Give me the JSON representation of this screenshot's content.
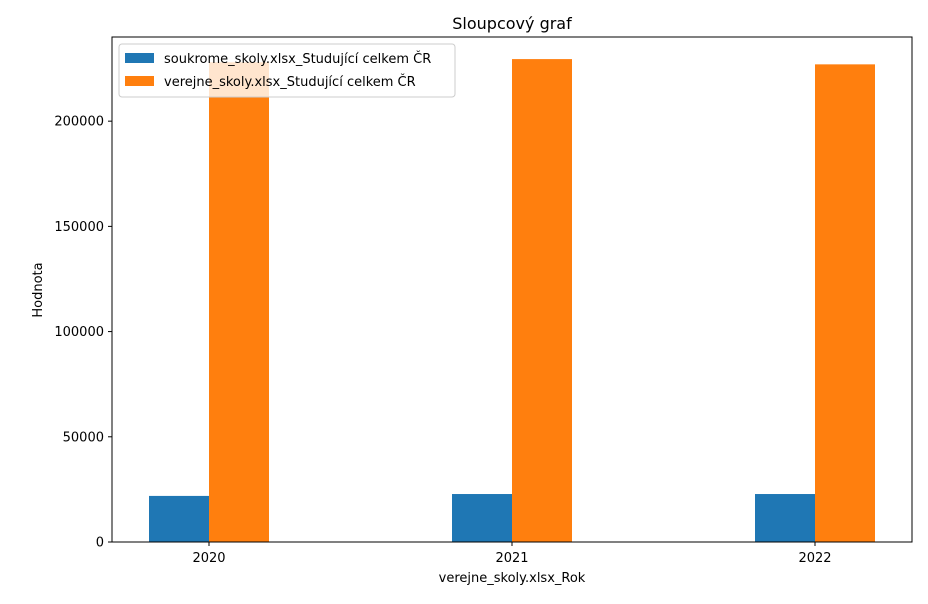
{
  "chart_data": {
    "type": "bar",
    "title": "Sloupcový graf",
    "xlabel": "verejne_skoly.xlsx_Rok",
    "ylabel": "Hodnota",
    "categories": [
      "2020",
      "2021",
      "2022"
    ],
    "series": [
      {
        "name": "soukrome_skoly.xlsx_Studující celkem ČR",
        "values": [
          21900,
          22800,
          22800
        ],
        "color": "#1f77b4"
      },
      {
        "name": "verejne_skoly.xlsx_Studující celkem ČR",
        "values": [
          228000,
          229500,
          227000
        ],
        "color": "#ff7f0e"
      }
    ],
    "ylim": [
      0,
      240000
    ],
    "yticks": [
      0,
      50000,
      100000,
      150000,
      200000
    ],
    "ytick_labels": [
      "0",
      "50000",
      "100000",
      "150000",
      "200000"
    ],
    "grid": false,
    "legend_position": "upper-left"
  }
}
